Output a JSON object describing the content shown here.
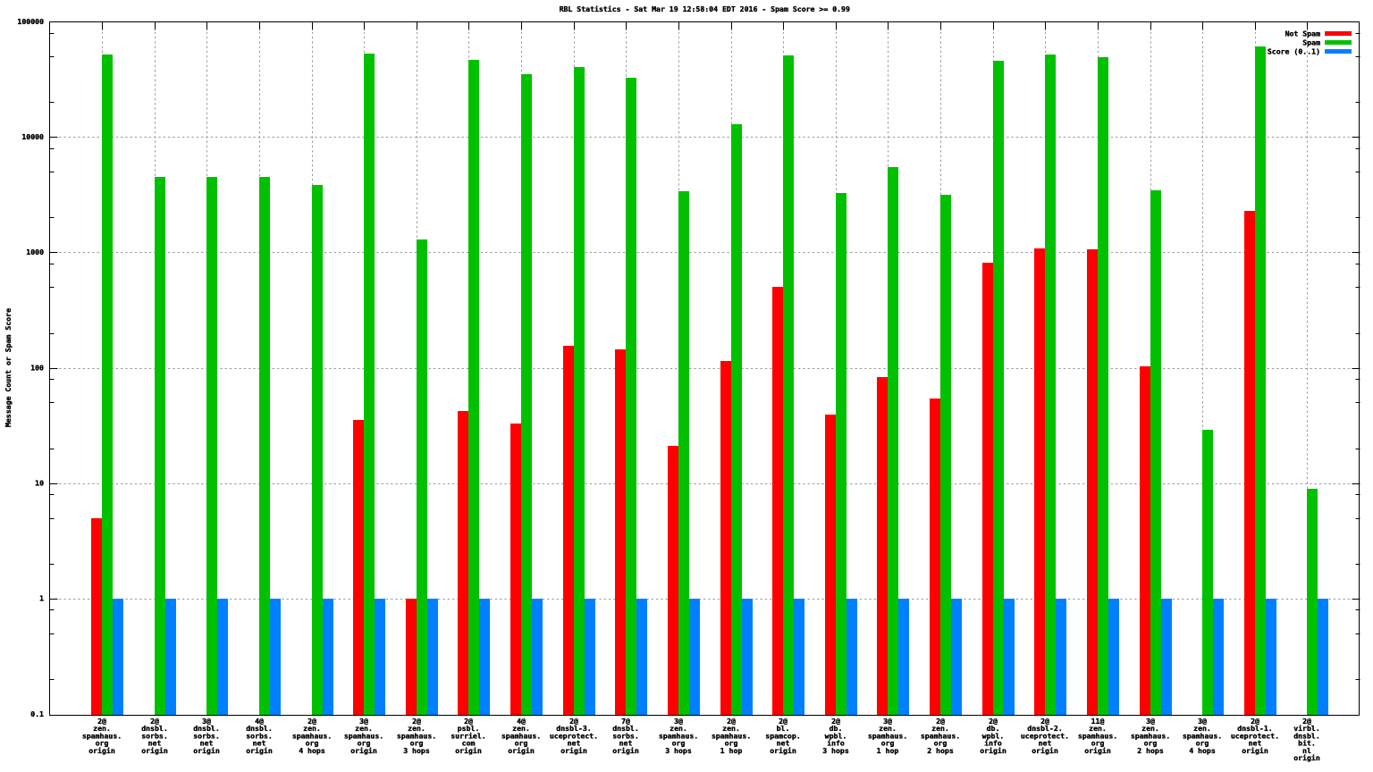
{
  "page": {
    "background_color": "#ffffff"
  },
  "chart_data": {
    "type": "bar",
    "title": "RBL Statistics - Sat Mar 19 12:58:04 EDT 2016 - Spam Score >= 0.99",
    "xlabel": "",
    "ylabel": "Message Count or Spam Score",
    "y_scale": "log",
    "ylim": [
      0.1,
      100000
    ],
    "y_tick_labels": [
      "100000",
      "10000",
      "1000",
      "100",
      "10",
      "1",
      "0.1"
    ],
    "y_minor_tick_multiples": [
      2,
      5,
      8
    ],
    "grid": true,
    "legend_position": "top-right",
    "legend_entries": [
      "Not Spam",
      "Spam",
      "Score (0..1)"
    ],
    "categories": [
      "2@ zen.spamhaus.org origin",
      "2@ dnsbl.sorbs.net origin",
      "3@ dnsbl.sorbs.net origin",
      "4@ dnsbl.sorbs.net origin",
      "2@ zen.spamhaus.org 4 hops",
      "3@ zen.spamhaus.org origin",
      "2@ zen.spamhaus.org 3 hops",
      "2@ psbl.surriel.com origin",
      "4@ zen.spamhaus.org origin",
      "2@ dnsbl-3.uceprotect.net origin",
      "7@ dnsbl.sorbs.net origin",
      "3@ zen.spamhaus.org 3 hops",
      "2@ zen.spamhaus.org 1 hop",
      "2@ bl.spamcop.net origin",
      "2@ db.wpbl.info 3 hops",
      "3@ zen.spamhaus.org 1 hop",
      "2@ zen.spamhaus.org 2 hops",
      "2@ db.wpbl.info origin",
      "2@ dnsbl-2.uceprotect.net origin",
      "11@ zen.spamhaus.org origin",
      "3@ zen.spamhaus.org 2 hops",
      "3@ zen.spamhaus.org 4 hops",
      "2@ dnsbl-1.uceprotect.net origin",
      "2@ virbl.dnsbl.bit.nl origin"
    ],
    "series": [
      {
        "name": "Not Spam",
        "color": "#ff0000",
        "values": [
          5,
          0,
          0,
          0,
          0,
          35,
          1,
          42,
          33,
          154,
          143,
          21,
          115,
          505,
          39,
          83,
          54,
          810,
          1080,
          1070,
          102,
          0,
          2300,
          0
        ]
      },
      {
        "name": "Spam",
        "color": "#00c000",
        "values": [
          51600,
          4520,
          4520,
          4500,
          3820,
          52500,
          1290,
          46300,
          35000,
          40000,
          32300,
          3400,
          12800,
          50500,
          3240,
          5500,
          3140,
          45500,
          51600,
          48700,
          3440,
          29,
          61000,
          9
        ]
      },
      {
        "name": "Score (0..1)",
        "color": "#0080ff",
        "values": [
          1,
          1,
          1,
          1,
          1,
          1,
          1,
          1,
          1,
          1,
          1,
          1,
          1,
          1,
          1,
          1,
          1,
          1,
          1,
          1,
          1,
          1,
          1,
          1
        ]
      }
    ]
  },
  "style": {
    "axis_color": "#000000",
    "grid_color": "#999999",
    "text_color": "#000000"
  }
}
